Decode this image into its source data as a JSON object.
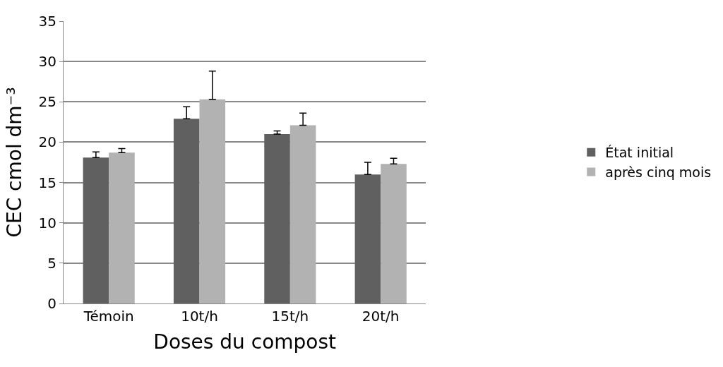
{
  "chart_data": {
    "type": "bar",
    "xlabel": "Doses du compost",
    "ylabel": "CEC cmol dm⁻³",
    "categories": [
      "Témoin",
      "10t/h",
      "15t/h",
      "20t/h"
    ],
    "series": [
      {
        "name": "État initial",
        "color": "#606060",
        "values": [
          18.1,
          22.9,
          21.0,
          16.0
        ],
        "errors": [
          [
            18.1,
            18.8
          ],
          [
            22.9,
            24.4
          ],
          [
            21.0,
            21.4
          ],
          [
            16.0,
            17.5
          ]
        ]
      },
      {
        "name": "après cinq mois",
        "color": "#b2b2b2",
        "values": [
          18.7,
          25.3,
          22.1,
          17.3
        ],
        "errors": [
          [
            18.7,
            19.2
          ],
          [
            25.3,
            28.8
          ],
          [
            22.1,
            23.6
          ],
          [
            17.3,
            18.0
          ]
        ]
      }
    ],
    "ylim": [
      0,
      35
    ],
    "yticks": [
      0,
      5,
      10,
      15,
      20,
      25,
      30,
      35
    ],
    "grid": "y",
    "legend": "right"
  }
}
